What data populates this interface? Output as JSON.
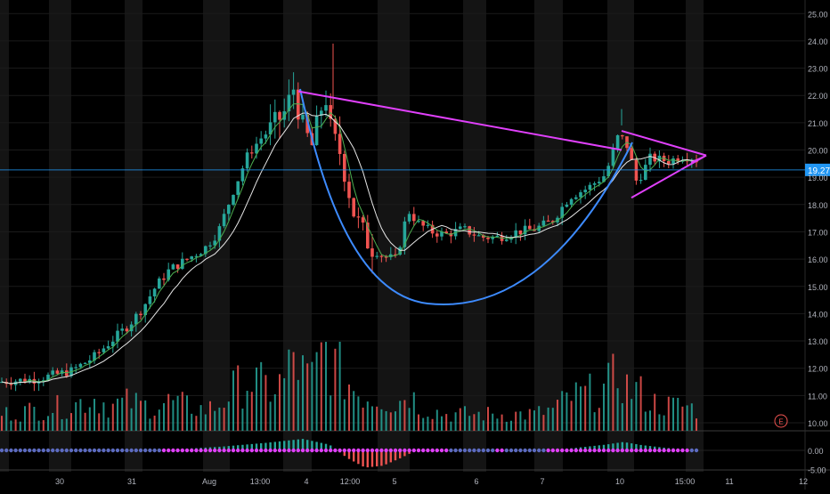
{
  "colors": {
    "background": "#000000",
    "up": "#26a69a",
    "down": "#ef5350",
    "session_shade": "#141414",
    "grid": "#1b1b1b",
    "axis_text": "#b2b5be",
    "price_line": "#2196f3",
    "price_badge": "#2196f3",
    "ma_fast": "#4caf50",
    "ma_slow": "#e6e6e6",
    "cup": "#3d8bff",
    "triangle": "#e040fb",
    "osc_dot": "#e040fb",
    "earnings": "#ef5350"
  },
  "chart_data": {
    "type": "candlestick",
    "price_axis": {
      "min": 9.5,
      "max": 25.5,
      "ticks": [
        "25.00",
        "24.00",
        "23.00",
        "22.00",
        "21.00",
        "20.00",
        "19.00",
        "18.00",
        "17.00",
        "16.00",
        "15.00",
        "14.00",
        "13.00",
        "12.00",
        "11.00",
        "10.00"
      ]
    },
    "oscillator_axis": {
      "min": -6.5,
      "max": 6.5,
      "ticks": [
        "0.00",
        "-5.00"
      ]
    },
    "time_labels": [
      "30",
      "31",
      "Aug",
      "13:00",
      "4",
      "12:00",
      "5",
      "6",
      "7",
      "10",
      "15:00",
      "11",
      "12"
    ],
    "current_price_label": "19.27",
    "current_price": 19.27,
    "earnings_marker": "E",
    "x_range": [
      0,
      930
    ],
    "price_series": {
      "x": [
        0,
        40,
        80,
        105,
        125,
        145,
        160,
        175,
        190,
        210,
        230,
        245,
        262,
        278,
        292,
        305,
        320,
        330,
        338,
        350,
        365,
        372,
        382,
        398,
        415,
        430,
        445,
        458,
        470,
        485,
        500,
        520,
        540,
        560,
        580,
        600,
        620,
        640,
        660,
        680,
        695,
        705,
        715,
        730,
        750,
        770,
        785
      ],
      "close": [
        11.5,
        11.6,
        11.9,
        12.4,
        13.0,
        13.6,
        14.2,
        15.0,
        15.6,
        16.0,
        16.4,
        17.0,
        18.5,
        19.8,
        20.4,
        20.8,
        21.4,
        22.3,
        21.0,
        20.1,
        22.1,
        20.6,
        19.9,
        17.6,
        16.5,
        16.1,
        16.0,
        17.8,
        17.3,
        17.0,
        16.9,
        17.1,
        16.8,
        16.8,
        17.0,
        17.1,
        17.4,
        18.3,
        18.6,
        19.1,
        20.6,
        20.1,
        18.8,
        19.7,
        19.6,
        19.8,
        19.6
      ]
    },
    "volume_series": {
      "x": [
        0,
        40,
        80,
        105,
        125,
        145,
        160,
        175,
        190,
        210,
        230,
        245,
        262,
        278,
        292,
        305,
        320,
        330,
        338,
        350,
        365,
        372,
        382,
        398,
        415,
        430,
        445,
        458,
        470,
        485,
        500,
        520,
        540,
        560,
        580,
        600,
        620,
        640,
        660,
        680,
        695,
        705,
        715,
        730,
        750,
        770,
        785
      ],
      "values": [
        0.2,
        0.25,
        0.3,
        0.4,
        0.3,
        0.35,
        0.3,
        0.3,
        0.35,
        0.3,
        0.25,
        0.3,
        0.5,
        0.6,
        0.55,
        0.5,
        0.6,
        0.9,
        0.7,
        0.6,
        1.0,
        0.8,
        0.7,
        0.5,
        0.4,
        0.4,
        0.3,
        0.5,
        0.3,
        0.25,
        0.2,
        0.2,
        0.2,
        0.2,
        0.2,
        0.2,
        0.25,
        0.4,
        0.45,
        0.5,
        0.7,
        0.5,
        0.5,
        0.35,
        0.3,
        0.3,
        0.25
      ]
    },
    "oscillator_series": {
      "x": [
        0,
        100,
        200,
        250,
        300,
        340,
        370,
        390,
        410,
        430,
        450,
        470,
        490,
        520,
        560,
        600,
        640,
        680,
        700,
        720,
        750,
        780
      ],
      "values": [
        0,
        0,
        0.3,
        1.0,
        2.0,
        3.0,
        1.5,
        -2.0,
        -4.5,
        -4.0,
        -2.0,
        0.3,
        0.4,
        0.1,
        -0.3,
        0.1,
        0.5,
        1.5,
        2.2,
        1.4,
        0.6,
        0.2
      ]
    }
  }
}
